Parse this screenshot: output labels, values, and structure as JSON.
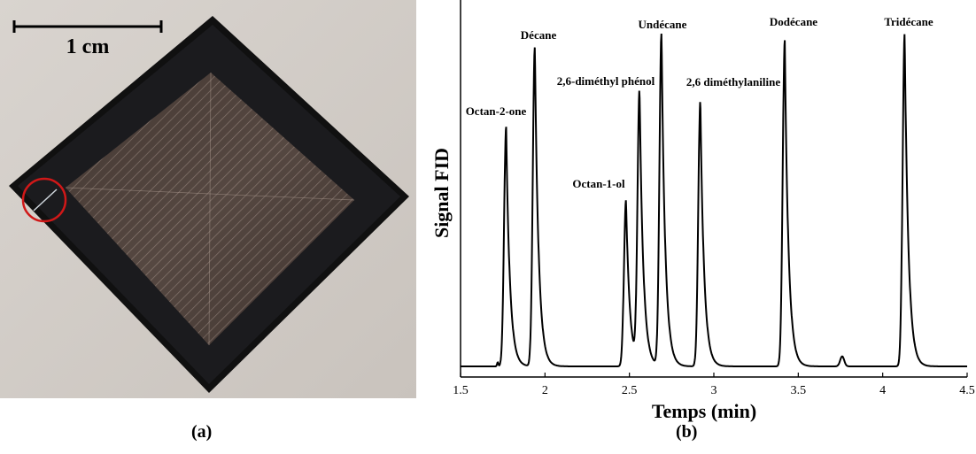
{
  "panel_a": {
    "scale_bar_label": "1 cm",
    "caption": "(a)"
  },
  "panel_b": {
    "caption": "(b)"
  },
  "chart_data": {
    "type": "line",
    "title": "",
    "xlabel": "Temps (min)",
    "ylabel": "Signal FID",
    "xlim": [
      1.5,
      4.5
    ],
    "xticks": [
      1.5,
      2,
      2.5,
      3,
      3.5,
      4,
      4.5
    ],
    "xtick_labels": [
      "1.5",
      "2",
      "2.5",
      "3",
      "3.5",
      "4",
      "4.5"
    ],
    "yticks_visible": false,
    "grid": false,
    "series": [
      {
        "values": "peak-annotated FID trace",
        "baseline": 0.0,
        "peaks": [
          {
            "label": "Octan-2-one",
            "time": 1.77,
            "height": 0.72
          },
          {
            "label": "Décane",
            "time": 1.94,
            "height": 0.96
          },
          {
            "label": "Octan-1-ol",
            "time": 2.48,
            "height": 0.5
          },
          {
            "label": "2,6-diméthyl phénol",
            "time": 2.56,
            "height": 0.82
          },
          {
            "label": "Undécane",
            "time": 2.69,
            "height": 1.0
          },
          {
            "label": "2,6 diméthylaniline",
            "time": 2.92,
            "height": 0.8
          },
          {
            "label": "Dodécane",
            "time": 3.42,
            "height": 0.98
          },
          {
            "label": "Tridécane",
            "time": 4.13,
            "height": 1.0
          }
        ]
      }
    ]
  }
}
